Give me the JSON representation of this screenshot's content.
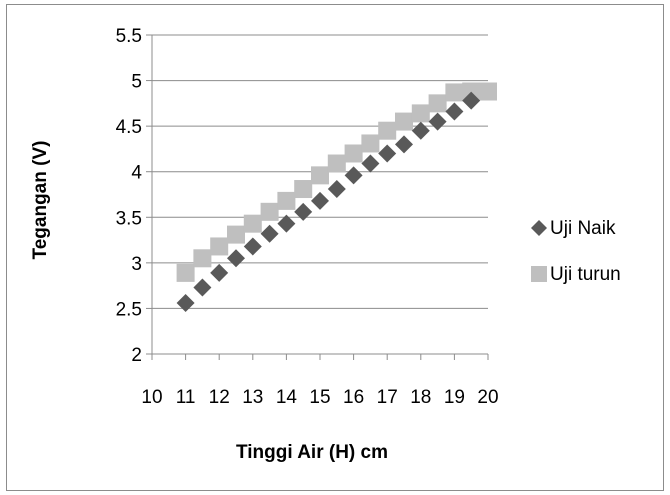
{
  "chart_data": {
    "type": "scatter",
    "title": "",
    "xlabel": "Tinggi Air (H) cm",
    "ylabel": "Tegangan (V)",
    "xlim": [
      10,
      20
    ],
    "ylim": [
      2,
      5.5
    ],
    "xticks": [
      "10",
      "11",
      "12",
      "13",
      "14",
      "15",
      "16",
      "17",
      "18",
      "19",
      "20"
    ],
    "yticks": [
      "2",
      "2.5",
      "3",
      "3.5",
      "4",
      "4.5",
      "5",
      "5.5"
    ],
    "grid": "horizontal",
    "legend_position": "right",
    "series": [
      {
        "name": "Uji Naik",
        "marker": "diamond",
        "color": "#595959",
        "x": [
          11,
          11.5,
          12,
          12.5,
          13,
          13.5,
          14,
          14.5,
          15,
          15.5,
          16,
          16.5,
          17,
          17.5,
          18,
          18.5,
          19,
          19.5
        ],
        "y": [
          2.56,
          2.73,
          2.89,
          3.05,
          3.18,
          3.32,
          3.43,
          3.56,
          3.68,
          3.81,
          3.96,
          4.09,
          4.2,
          4.3,
          4.45,
          4.55,
          4.66,
          4.78
        ]
      },
      {
        "name": "Uji turun",
        "marker": "square",
        "color": "#bfbfbf",
        "x": [
          11,
          11.5,
          12,
          12.5,
          13,
          13.5,
          14,
          14.5,
          15,
          15.5,
          16,
          16.5,
          17,
          17.5,
          18,
          18.5,
          19,
          19.5,
          20
        ],
        "y": [
          2.89,
          3.05,
          3.18,
          3.31,
          3.43,
          3.56,
          3.68,
          3.81,
          3.96,
          4.09,
          4.2,
          4.31,
          4.45,
          4.55,
          4.64,
          4.75,
          4.87,
          4.88,
          4.88
        ]
      }
    ]
  }
}
